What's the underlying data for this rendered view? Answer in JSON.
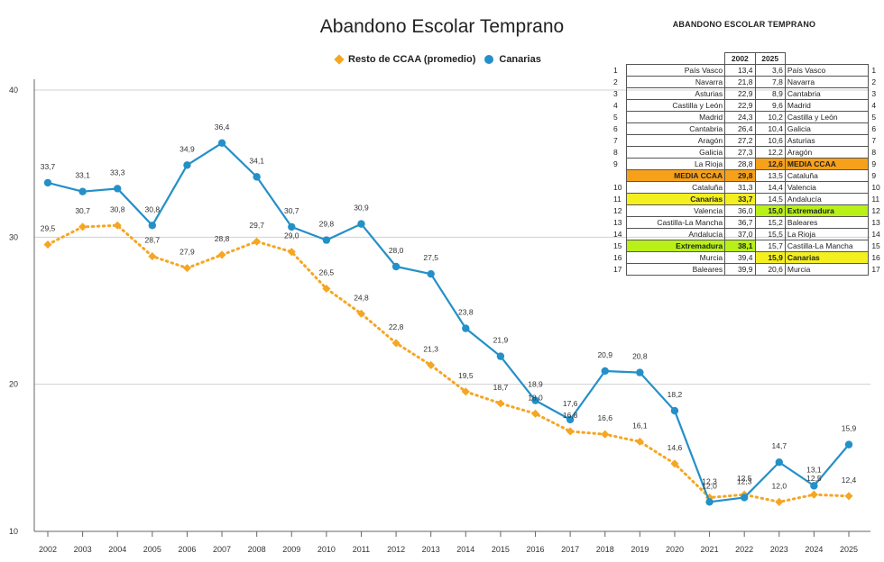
{
  "chart_data": {
    "type": "line",
    "title": "Abandono Escolar Temprano",
    "categories": [
      "2002",
      "2003",
      "2004",
      "2005",
      "2006",
      "2007",
      "2008",
      "2009",
      "2010",
      "2011",
      "2012",
      "2013",
      "2014",
      "2015",
      "2016",
      "2017",
      "2018",
      "2019",
      "2020",
      "2021",
      "2022",
      "2023",
      "2024",
      "2025"
    ],
    "series": [
      {
        "name": "Resto de CCAA (promedio)",
        "color": "#f5a623",
        "marker": "diamond",
        "dash": true,
        "values": [
          29.5,
          30.7,
          30.8,
          28.7,
          27.9,
          28.8,
          29.7,
          29.0,
          26.5,
          24.8,
          22.8,
          21.3,
          19.5,
          18.7,
          18.0,
          16.8,
          16.6,
          16.1,
          14.6,
          12.3,
          12.5,
          12.0,
          12.5,
          12.4
        ],
        "labels": [
          "29,5",
          "30,7",
          "30,8",
          "28,7",
          "27,9",
          "28,8",
          "29,7",
          "29,0",
          "26,5",
          "24,8",
          "22,8",
          "21,3",
          "19,5",
          "18,7",
          "18,0",
          "16,8",
          "16,6",
          "16,1",
          "14,6",
          "12,3",
          "12,5",
          "12,0",
          "12,5",
          "12,4"
        ]
      },
      {
        "name": "Canarias",
        "color": "#2490c8",
        "marker": "circle",
        "dash": false,
        "values": [
          33.7,
          33.1,
          33.3,
          30.8,
          34.9,
          36.4,
          34.1,
          30.7,
          29.8,
          30.9,
          28.0,
          27.5,
          23.8,
          21.9,
          18.9,
          17.6,
          20.9,
          20.8,
          18.2,
          12.0,
          12.3,
          14.7,
          13.1,
          15.9
        ],
        "labels": [
          "33,7",
          "33,1",
          "33,3",
          "30,8",
          "34,9",
          "36,4",
          "34,1",
          "30,7",
          "29,8",
          "30,9",
          "28,0",
          "27,5",
          "23,8",
          "21,9",
          "18,9",
          "17,6",
          "20,9",
          "20,8",
          "18,2",
          "12,0",
          "12,3",
          "14,7",
          "13,1",
          "15,9"
        ]
      }
    ],
    "yticks": [
      10,
      20,
      30,
      40
    ],
    "ylim": [
      10,
      40
    ],
    "grid": true,
    "legend_position": "top"
  },
  "table": {
    "title": "ABANDONO ESCOLAR TEMPRANO",
    "col_2002": "2002",
    "col_2025": "2025",
    "rows": [
      {
        "rank": "1",
        "name2002": "País Vasco",
        "v2002": "13,4",
        "v2025": "3,6",
        "name2025": "País Vasco",
        "hl2002": "",
        "hl2025": ""
      },
      {
        "rank": "2",
        "name2002": "Navarra",
        "v2002": "21,8",
        "v2025": "7,8",
        "name2025": "Navarra",
        "hl2002": "",
        "hl2025": ""
      },
      {
        "rank": "3",
        "name2002": "Asturias",
        "v2002": "22,9",
        "v2025": "8,9",
        "name2025": "Cantabria",
        "hl2002": "",
        "hl2025": ""
      },
      {
        "rank": "4",
        "name2002": "Castilla y León",
        "v2002": "22,9",
        "v2025": "9,6",
        "name2025": "Madrid",
        "hl2002": "",
        "hl2025": ""
      },
      {
        "rank": "5",
        "name2002": "Madrid",
        "v2002": "24,3",
        "v2025": "10,2",
        "name2025": "Castilla y León",
        "hl2002": "",
        "hl2025": ""
      },
      {
        "rank": "6",
        "name2002": "Cantabria",
        "v2002": "26,4",
        "v2025": "10,4",
        "name2025": "Galicia",
        "hl2002": "",
        "hl2025": ""
      },
      {
        "rank": "7",
        "name2002": "Aragón",
        "v2002": "27,2",
        "v2025": "10,6",
        "name2025": "Asturias",
        "hl2002": "",
        "hl2025": ""
      },
      {
        "rank": "8",
        "name2002": "Galicia",
        "v2002": "27,3",
        "v2025": "12,2",
        "name2025": "Aragón",
        "hl2002": "",
        "hl2025": ""
      },
      {
        "rank": "9",
        "name2002": "La Rioja",
        "v2002": "28,8",
        "v2025": "12,6",
        "name2025": "MEDIA CCAA",
        "hl2002": "",
        "hl2025": "orange"
      },
      {
        "rank": "",
        "name2002": "MEDIA CCAA",
        "v2002": "29,8",
        "v2025": "13,5",
        "name2025": "Cataluña",
        "hl2002": "orange",
        "hl2025": "",
        "rank_right": "9"
      },
      {
        "rank": "10",
        "name2002": "Cataluña",
        "v2002": "31,3",
        "v2025": "14,4",
        "name2025": "Valencia",
        "hl2002": "",
        "hl2025": ""
      },
      {
        "rank": "11",
        "name2002": "Canarias",
        "v2002": "33,7",
        "v2025": "14,5",
        "name2025": "Andalucía",
        "hl2002": "yellow",
        "hl2025": ""
      },
      {
        "rank": "12",
        "name2002": "Valencia",
        "v2002": "36,0",
        "v2025": "15,0",
        "name2025": "Extremadura",
        "hl2002": "",
        "hl2025": "lime"
      },
      {
        "rank": "13",
        "name2002": "Castilla-La Mancha",
        "v2002": "36,7",
        "v2025": "15,2",
        "name2025": "Baleares",
        "hl2002": "",
        "hl2025": ""
      },
      {
        "rank": "14",
        "name2002": "Andalucía",
        "v2002": "37,0",
        "v2025": "15,5",
        "name2025": "La Rioja",
        "hl2002": "",
        "hl2025": ""
      },
      {
        "rank": "15",
        "name2002": "Extremadura",
        "v2002": "38,1",
        "v2025": "15,7",
        "name2025": "Castilla-La Mancha",
        "hl2002": "lime",
        "hl2025": ""
      },
      {
        "rank": "16",
        "name2002": "Murcia",
        "v2002": "39,4",
        "v2025": "15,9",
        "name2025": "Canarias",
        "hl2002": "",
        "hl2025": "yellow"
      },
      {
        "rank": "17",
        "name2002": "Baleares",
        "v2002": "39,9",
        "v2025": "20,6",
        "name2025": "Murcia",
        "hl2002": "",
        "hl2025": ""
      }
    ]
  }
}
